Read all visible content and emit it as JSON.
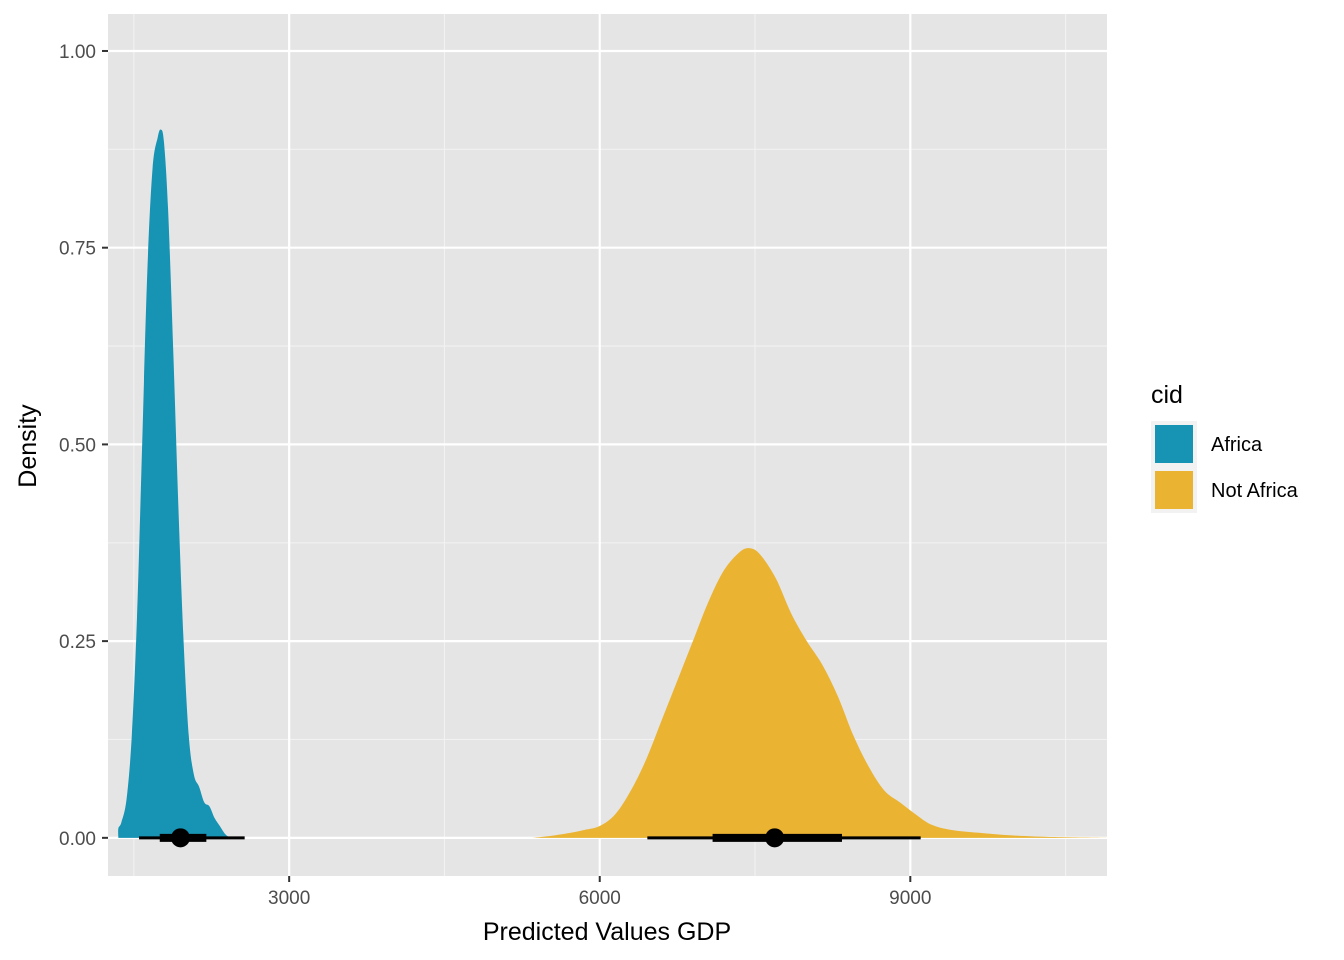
{
  "chart_data": {
    "type": "area",
    "xlabel": "Predicted Values GDP",
    "ylabel": "Density",
    "xlim": [
      1250,
      10900
    ],
    "ylim": [
      -0.0485,
      1.047
    ],
    "x_ticks": [
      3000,
      6000,
      9000
    ],
    "x_tick_labels": [
      "3000",
      "6000",
      "9000"
    ],
    "x_minor_ticks": [
      1500,
      4500,
      7500,
      10500
    ],
    "y_ticks": [
      0,
      0.25,
      0.5,
      0.75,
      1.0
    ],
    "y_tick_labels": [
      "0.00",
      "0.25",
      "0.50",
      "0.75",
      "1.00"
    ],
    "y_minor_ticks": [
      0.125,
      0.375,
      0.625,
      0.875
    ],
    "grid": true,
    "legend": {
      "title": "cid",
      "position": "right"
    },
    "series": [
      {
        "name": "Africa",
        "color": "#1793B3",
        "density": [
          [
            1350,
            0
          ],
          [
            1350,
            0.012
          ],
          [
            1380,
            0.02
          ],
          [
            1430,
            0.05
          ],
          [
            1480,
            0.13
          ],
          [
            1530,
            0.28
          ],
          [
            1580,
            0.5
          ],
          [
            1630,
            0.72
          ],
          [
            1680,
            0.85
          ],
          [
            1730,
            0.89
          ],
          [
            1760,
            0.9
          ],
          [
            1790,
            0.885
          ],
          [
            1830,
            0.8
          ],
          [
            1880,
            0.62
          ],
          [
            1930,
            0.42
          ],
          [
            1980,
            0.25
          ],
          [
            2030,
            0.13
          ],
          [
            2080,
            0.08
          ],
          [
            2130,
            0.065
          ],
          [
            2180,
            0.045
          ],
          [
            2230,
            0.04
          ],
          [
            2280,
            0.025
          ],
          [
            2330,
            0.015
          ],
          [
            2380,
            0.005
          ],
          [
            2420,
            0.001
          ],
          [
            2460,
            0
          ]
        ],
        "median": 1950,
        "interval_66": [
          1750,
          2200
        ],
        "interval_95": [
          1550,
          2570
        ]
      },
      {
        "name": "Not Africa",
        "color": "#EAB332",
        "density": [
          [
            5350,
            0
          ],
          [
            5500,
            0.002
          ],
          [
            5700,
            0.006
          ],
          [
            5850,
            0.01
          ],
          [
            6000,
            0.015
          ],
          [
            6150,
            0.03
          ],
          [
            6300,
            0.06
          ],
          [
            6450,
            0.1
          ],
          [
            6600,
            0.15
          ],
          [
            6750,
            0.2
          ],
          [
            6900,
            0.25
          ],
          [
            7050,
            0.3
          ],
          [
            7200,
            0.34
          ],
          [
            7350,
            0.363
          ],
          [
            7450,
            0.368
          ],
          [
            7550,
            0.36
          ],
          [
            7700,
            0.33
          ],
          [
            7850,
            0.285
          ],
          [
            8000,
            0.25
          ],
          [
            8150,
            0.22
          ],
          [
            8300,
            0.18
          ],
          [
            8450,
            0.13
          ],
          [
            8600,
            0.09
          ],
          [
            8750,
            0.06
          ],
          [
            8900,
            0.045
          ],
          [
            9050,
            0.03
          ],
          [
            9200,
            0.017
          ],
          [
            9400,
            0.01
          ],
          [
            9700,
            0.006
          ],
          [
            10000,
            0.003
          ],
          [
            10400,
            0.001
          ],
          [
            10900,
            0
          ]
        ],
        "median": 7690,
        "interval_66": [
          7090,
          8340
        ],
        "interval_95": [
          6460,
          9100
        ]
      }
    ]
  }
}
